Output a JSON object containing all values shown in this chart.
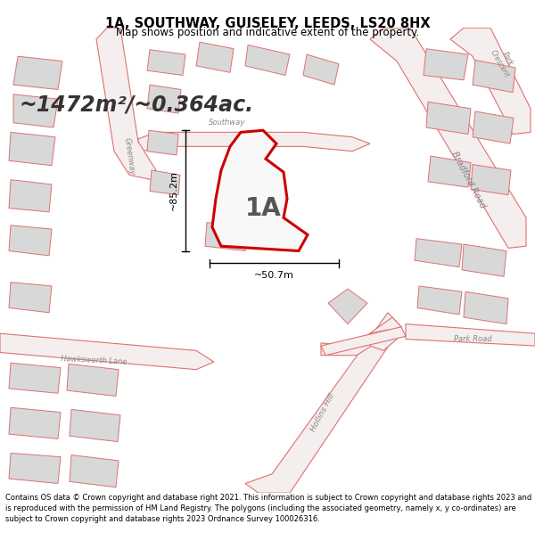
{
  "title": "1A, SOUTHWAY, GUISELEY, LEEDS, LS20 8HX",
  "subtitle": "Map shows position and indicative extent of the property.",
  "area_text": "~1472m²/~0.364ac.",
  "label": "1A",
  "dim_width": "~50.7m",
  "dim_height": "~85.2m",
  "footer": "Contains OS data © Crown copyright and database right 2021. This information is subject to Crown copyright and database rights 2023 and is reproduced with the permission of HM Land Registry. The polygons (including the associated geometry, namely x, y co-ordinates) are subject to Crown copyright and database rights 2023 Ordnance Survey 100026316.",
  "map_bg": "#f9f9f9",
  "road_color": "#e07070",
  "road_fill": "#f5eeee",
  "building_color": "#e07070",
  "building_fill": "#d8d8d8",
  "property_color": "#cc0000",
  "property_fill": "#ffffff",
  "label_color": "#888888",
  "title_color": "#000000",
  "footer_color": "#000000",
  "bg_color": "#ffffff",
  "fig_width": 6.0,
  "fig_height": 6.25
}
